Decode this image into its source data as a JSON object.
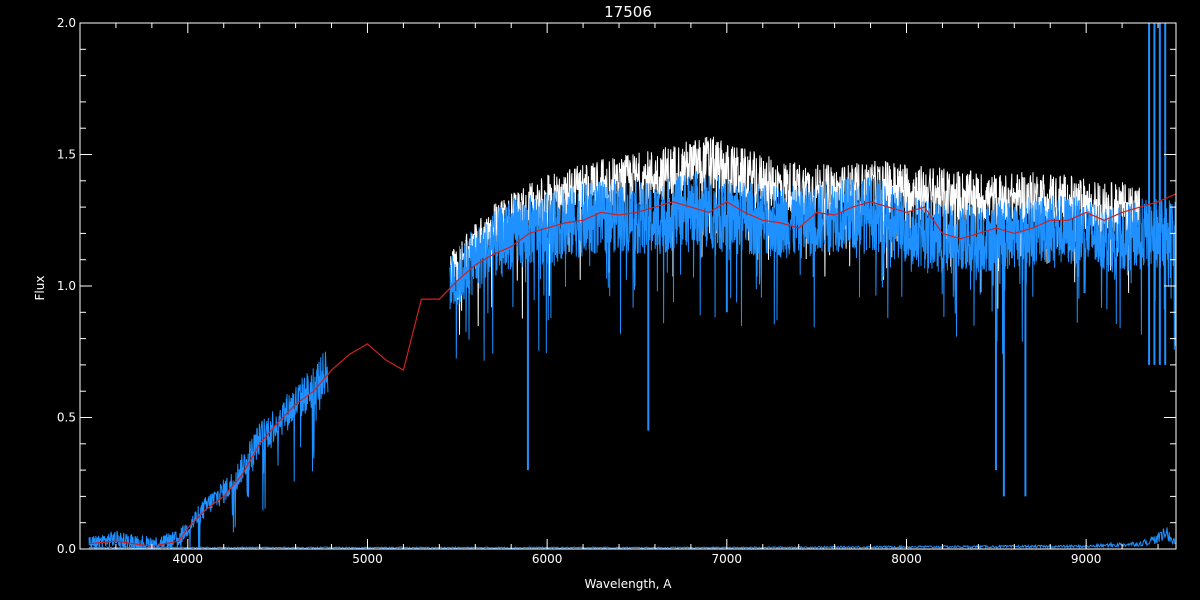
{
  "chart_data": {
    "type": "line",
    "title": "17506",
    "xlabel": "Wavelength, A",
    "ylabel": "Flux",
    "xlim": [
      3400,
      9500
    ],
    "ylim": [
      0.0,
      2.0
    ],
    "x_ticks": [
      4000,
      5000,
      6000,
      7000,
      8000,
      9000
    ],
    "x_tick_labels": [
      "4000",
      "5000",
      "6000",
      "7000",
      "8000",
      "9000"
    ],
    "y_ticks": [
      0.0,
      0.5,
      1.0,
      1.5,
      2.0
    ],
    "y_tick_labels": [
      "0.0",
      "0.5",
      "1.0",
      "1.5",
      "2.0"
    ],
    "x_minor_step": 200,
    "y_minor_step": 0.1,
    "grid": false,
    "background": "#000000",
    "axis_color": "#ffffff",
    "series": [
      {
        "role": "observed-spectrum",
        "color": "#1e90ff",
        "style": "noisy-line",
        "noise": 0.09,
        "x": [
          3450,
          3600,
          3800,
          3950,
          4100,
          4250,
          4400,
          4550,
          4700,
          4780
        ],
        "y": [
          0.02,
          0.04,
          0.02,
          0.04,
          0.16,
          0.25,
          0.42,
          0.52,
          0.62,
          0.68
        ],
        "segments": [
          {
            "x": [
              5460,
              5600,
              5800,
              6000,
              6200,
              6400,
              6600,
              6800,
              7000,
              7200,
              7400,
              7600,
              7800,
              8000,
              8200,
              8400,
              8600,
              8800,
              9000,
              9200,
              9300,
              9400,
              9500
            ],
            "y": [
              1.0,
              1.1,
              1.2,
              1.22,
              1.25,
              1.27,
              1.25,
              1.3,
              1.27,
              1.25,
              1.24,
              1.27,
              1.28,
              1.22,
              1.18,
              1.18,
              1.2,
              1.22,
              1.2,
              1.18,
              1.2,
              1.2,
              1.2
            ]
          }
        ],
        "absorption_lines": [
          {
            "x": 5893,
            "y": 0.3
          },
          {
            "x": 6563,
            "y": 0.45
          },
          {
            "x": 7000,
            "y": 0.9
          },
          {
            "x": 8498,
            "y": 0.3
          },
          {
            "x": 8542,
            "y": 0.2
          },
          {
            "x": 8662,
            "y": 0.2
          }
        ],
        "spikes_at_end": [
          {
            "x": 9350,
            "y": 2.0
          },
          {
            "x": 9380,
            "y": 2.0
          },
          {
            "x": 9410,
            "y": 2.0
          },
          {
            "x": 9440,
            "y": 2.0
          }
        ]
      },
      {
        "role": "upper-envelope",
        "color": "#ffffff",
        "x": [
          5460,
          5700,
          6000,
          6300,
          6600,
          6900,
          7000,
          7300,
          7600,
          7900,
          8200,
          8500,
          8800,
          9100,
          9300
        ],
        "y": [
          1.05,
          1.22,
          1.33,
          1.38,
          1.42,
          1.47,
          1.44,
          1.38,
          1.36,
          1.38,
          1.35,
          1.33,
          1.34,
          1.3,
          1.3
        ]
      },
      {
        "role": "template-fit",
        "color": "#cc2222",
        "x": [
          3450,
          3600,
          3800,
          3950,
          4000,
          4100,
          4200,
          4300,
          4400,
          4500,
          4600,
          4700,
          4800,
          4900,
          5000,
          5100,
          5200,
          5300,
          5400,
          5500,
          5600,
          5700,
          5800,
          5900,
          6000,
          6100,
          6200,
          6300,
          6400,
          6500,
          6600,
          6700,
          6800,
          6900,
          7000,
          7100,
          7200,
          7300,
          7400,
          7500,
          7600,
          7700,
          7800,
          7900,
          8000,
          8100,
          8200,
          8300,
          8400,
          8500,
          8600,
          8700,
          8800,
          8900,
          9000,
          9100,
          9200,
          9300,
          9400,
          9500
        ],
        "y": [
          0.02,
          0.03,
          0.01,
          0.03,
          0.08,
          0.15,
          0.2,
          0.28,
          0.4,
          0.48,
          0.55,
          0.6,
          0.68,
          0.74,
          0.78,
          0.72,
          0.68,
          0.95,
          0.95,
          1.02,
          1.08,
          1.12,
          1.15,
          1.2,
          1.22,
          1.24,
          1.25,
          1.28,
          1.27,
          1.28,
          1.3,
          1.32,
          1.3,
          1.28,
          1.32,
          1.28,
          1.25,
          1.24,
          1.22,
          1.28,
          1.27,
          1.3,
          1.32,
          1.3,
          1.28,
          1.3,
          1.2,
          1.18,
          1.2,
          1.22,
          1.2,
          1.22,
          1.25,
          1.25,
          1.28,
          1.25,
          1.28,
          1.3,
          1.32,
          1.35
        ]
      },
      {
        "role": "error-spectrum",
        "color": "#1e90ff",
        "x": [
          3450,
          4000,
          5000,
          6000,
          7000,
          8000,
          9000,
          9300,
          9400,
          9450,
          9500
        ],
        "y": [
          0.005,
          0.005,
          0.005,
          0.005,
          0.005,
          0.008,
          0.01,
          0.02,
          0.04,
          0.06,
          0.02
        ]
      }
    ]
  }
}
